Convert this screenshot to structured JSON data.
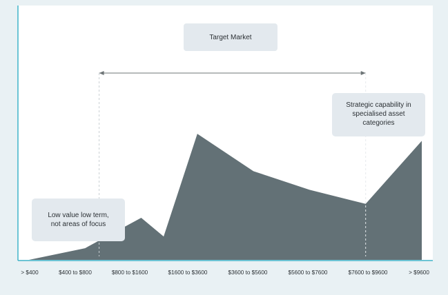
{
  "chart_data": {
    "type": "area",
    "categories": [
      "> $400",
      "$400 to $800",
      "$800 to $1600",
      "$1600 to $3600",
      "$3600 to $5600",
      "$5600 to $7600",
      "$7600 to $9600",
      "> $9600"
    ],
    "series": [
      {
        "values": [
          0,
          5,
          18,
          54,
          38,
          30,
          24,
          51
        ]
      }
    ],
    "extra_points": [
      {
        "x": 2.4,
        "value": 10
      }
    ],
    "ylim": [
      0,
      70
    ],
    "grid": false,
    "range": {
      "label": "Target Market",
      "from": 1.25,
      "to": 6
    },
    "annotations": [
      {
        "id": "low-value",
        "lines": [
          "Low value low term,",
          "not areas of focus"
        ]
      },
      {
        "id": "strategic",
        "lines": [
          "Strategic capability in",
          "specialised asset",
          "categories"
        ]
      }
    ],
    "colors": {
      "fill": "#637176",
      "axis": "#3fb3c8",
      "arrow": "#6d7476",
      "callout": "#e3e9ee",
      "background": "#e9f1f4",
      "plot": "#ffffff"
    }
  }
}
